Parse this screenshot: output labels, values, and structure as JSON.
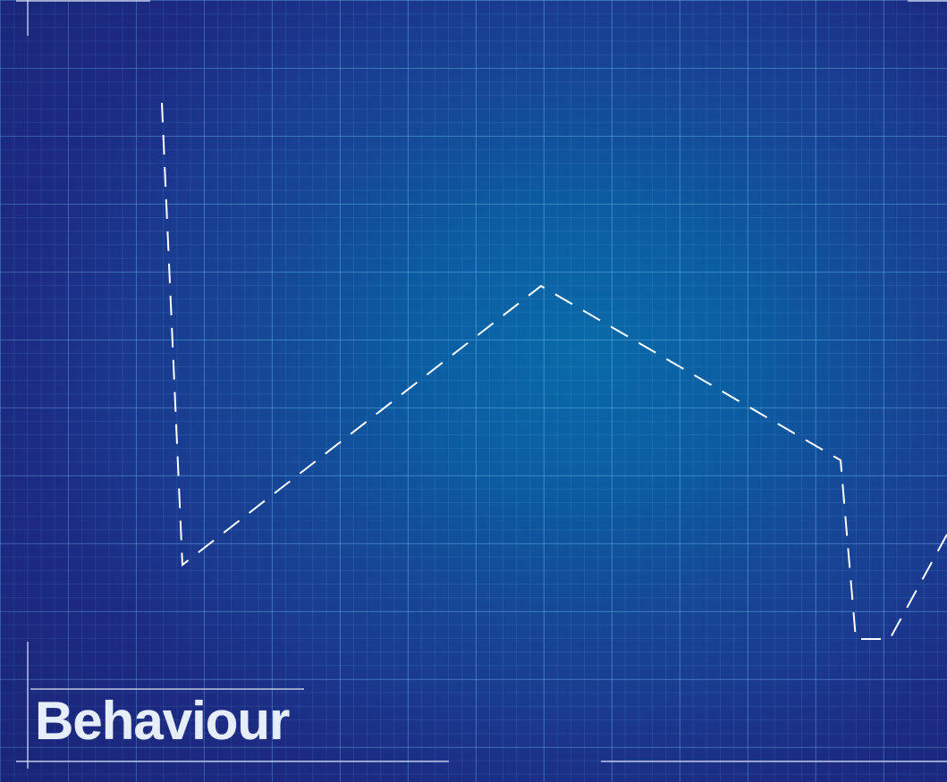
{
  "slide": {
    "title": "Behaviour"
  },
  "colors": {
    "background_center": "#0a6aa8",
    "background_edge": "#1d2e88",
    "grid_line": "#78c8ff",
    "dashed_path": "#ffffff",
    "frame_line": "#dfe8f7",
    "title_text": "#e6eefc"
  }
}
